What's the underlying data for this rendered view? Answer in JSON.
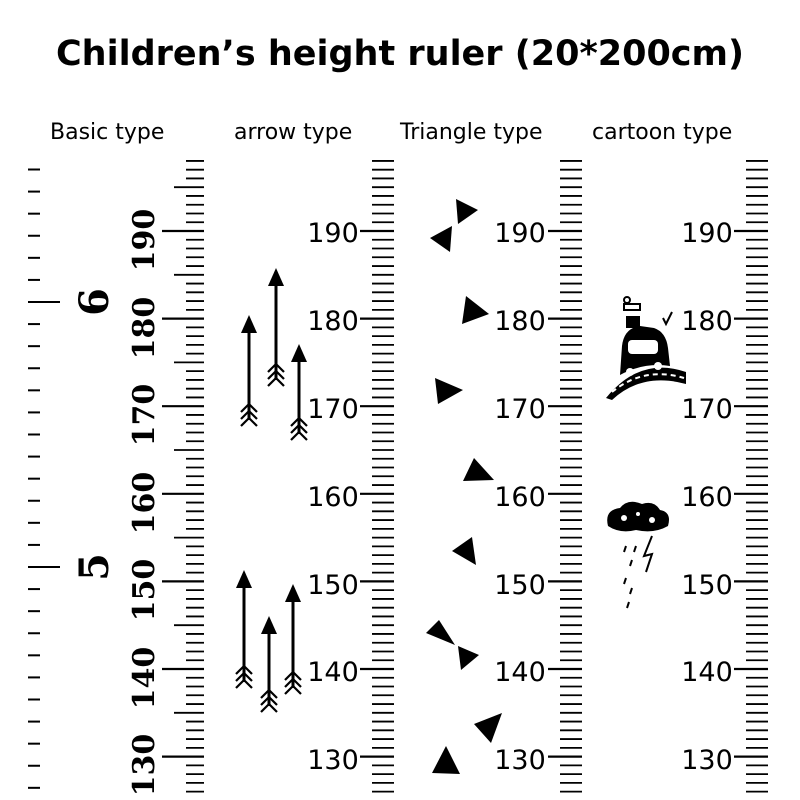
{
  "title": "Children’s height ruler (20*200cm)",
  "rulers": [
    {
      "label": "Basic type",
      "style": "basic"
    },
    {
      "label": "arrow type",
      "style": "arrow"
    },
    {
      "label": "Triangle type",
      "style": "triangle"
    },
    {
      "label": "cartoon type",
      "style": "cartoon"
    }
  ],
  "cm_labels": [
    "190",
    "180",
    "170",
    "160",
    "150",
    "140",
    "130"
  ],
  "foot_labels": [
    "6",
    "5"
  ],
  "colors": {
    "ink": "#000000",
    "background": "#ffffff"
  },
  "icons": [
    "arrow-icon",
    "triangle-icon",
    "bowtie-icon",
    "car-on-hill-icon",
    "storm-cloud-icon"
  ]
}
